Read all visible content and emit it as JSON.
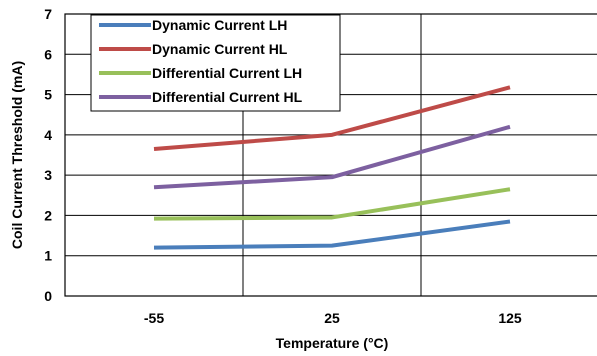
{
  "chart_data": {
    "type": "line",
    "categories": [
      "-55",
      "25",
      "125"
    ],
    "xlabel": "Temperature (°C)",
    "ylabel": "Coil Current Threshold (mA)",
    "ylim": [
      0,
      7
    ],
    "yticks": [
      "0",
      "1",
      "2",
      "3",
      "4",
      "5",
      "6",
      "7"
    ],
    "grid": true,
    "legend_position": "top-left",
    "series": [
      {
        "name": "Dynamic  Current LH",
        "color": "#4a7ebb",
        "values": [
          1.2,
          1.25,
          1.85
        ]
      },
      {
        "name": "Dynamic  Current HL",
        "color": "#be4b48",
        "values": [
          3.65,
          4.0,
          5.18
        ]
      },
      {
        "name": "Differential Current LH",
        "color": "#98c05a",
        "values": [
          1.92,
          1.95,
          2.65
        ]
      },
      {
        "name": "Differential Current HL",
        "color": "#7d60a0",
        "values": [
          2.7,
          2.95,
          4.2
        ]
      }
    ]
  }
}
